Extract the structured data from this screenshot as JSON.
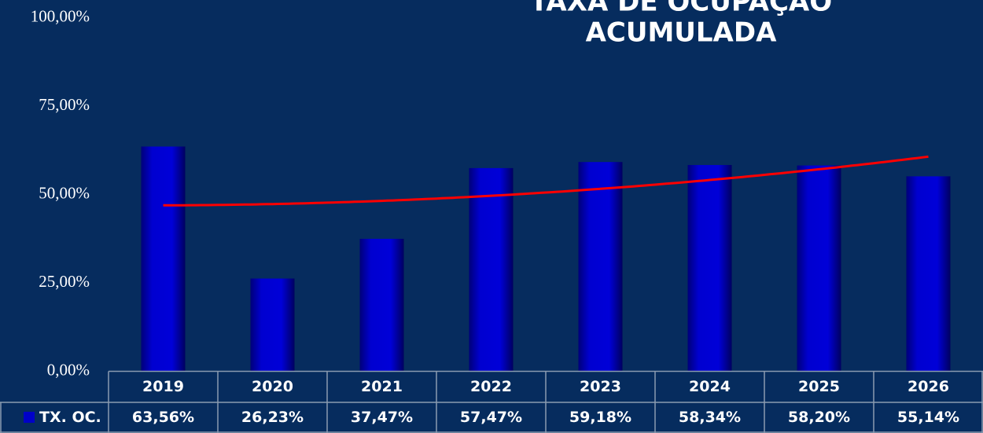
{
  "chart_data": {
    "type": "bar",
    "title": [
      "TAXA DE OCUPAÇÃO",
      "ACUMULADA"
    ],
    "categories": [
      "2019",
      "2020",
      "2021",
      "2022",
      "2023",
      "2024",
      "2025",
      "2026"
    ],
    "series": [
      {
        "name": "TX. OC.",
        "color": "#0000c8",
        "values": [
          63.56,
          26.23,
          37.47,
          57.47,
          59.18,
          58.34,
          58.2,
          55.14
        ],
        "value_labels": [
          "63,56%",
          "26,23%",
          "37,47%",
          "57,47%",
          "59,18%",
          "58,34%",
          "58,20%",
          "55,14%"
        ]
      }
    ],
    "ylim": [
      0,
      100
    ],
    "yticks": [
      {
        "value": 0,
        "label": "0,00%"
      },
      {
        "value": 25,
        "label": "25,00%"
      },
      {
        "value": 50,
        "label": "50,00%"
      },
      {
        "value": 75,
        "label": "75,00%"
      },
      {
        "value": 100,
        "label": "100,00%"
      }
    ],
    "trendline": {
      "type": "polynomial",
      "order": 2,
      "color": "#ff0000"
    },
    "data_table": true
  }
}
